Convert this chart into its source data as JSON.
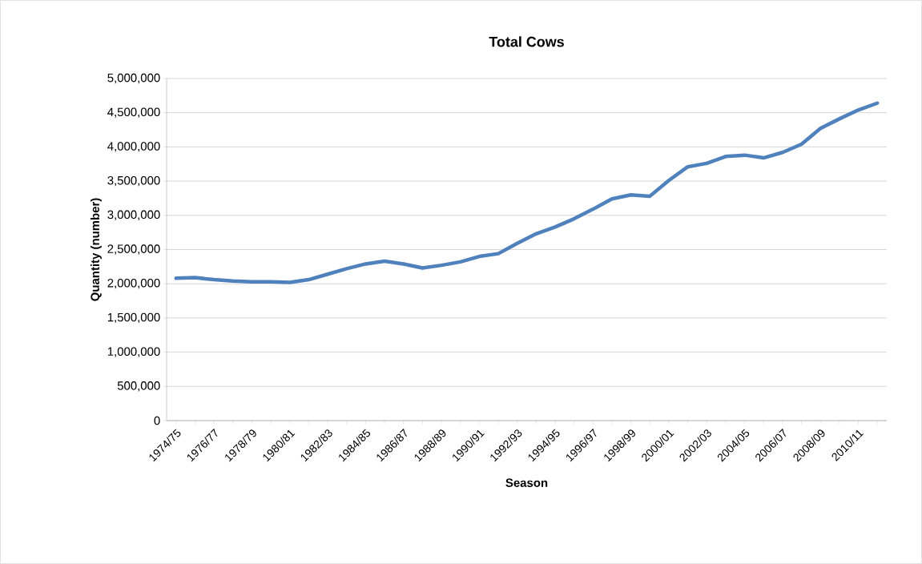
{
  "chart_data": {
    "type": "line",
    "title": "Total Cows",
    "xlabel": "Season",
    "ylabel": "Quantity (number)",
    "categories": [
      "1974/75",
      null,
      "1976/77",
      null,
      "1978/79",
      null,
      "1980/81",
      null,
      "1982/83",
      null,
      "1984/85",
      null,
      "1986/87",
      null,
      "1988/89",
      null,
      "1990/91",
      null,
      "1992/93",
      null,
      "1994/95",
      null,
      "1996/97",
      null,
      "1998/99",
      null,
      "2000/01",
      null,
      "2002/03",
      null,
      "2004/05",
      null,
      "2006/07",
      null,
      "2008/09",
      null,
      "2010/11",
      null
    ],
    "series": [
      {
        "color": "#4f81bd",
        "values": [
          2080000,
          2090000,
          2060000,
          2040000,
          2030000,
          2030000,
          2020000,
          2060000,
          2140000,
          2220000,
          2290000,
          2330000,
          2290000,
          2230000,
          2270000,
          2320000,
          2400000,
          2440000,
          2590000,
          2730000,
          2830000,
          2950000,
          3090000,
          3240000,
          3300000,
          3280000,
          3510000,
          3710000,
          3760000,
          3860000,
          3880000,
          3840000,
          3920000,
          4040000,
          4270000,
          4410000,
          4540000,
          4640000
        ]
      }
    ],
    "ylim": [
      0,
      5000000
    ],
    "yticks": [
      0,
      {
        "value": 500000,
        "label": "500,000"
      },
      {
        "value": 1000000,
        "label": "1,000,000"
      },
      {
        "value": 1500000,
        "label": "1,500,000"
      },
      {
        "value": 2000000,
        "label": "2,000,000"
      },
      {
        "value": 2500000,
        "label": "2,500,000"
      },
      {
        "value": 3000000,
        "label": "3,000,000"
      },
      {
        "value": 3500000,
        "label": "3,500,000"
      },
      {
        "value": 4000000,
        "label": "4,000,000"
      },
      {
        "value": 4500000,
        "label": "4,500,000"
      },
      {
        "value": 5000000,
        "label": "5,000,000"
      }
    ],
    "grid": "y",
    "marker": "none",
    "line_style": "solid"
  }
}
